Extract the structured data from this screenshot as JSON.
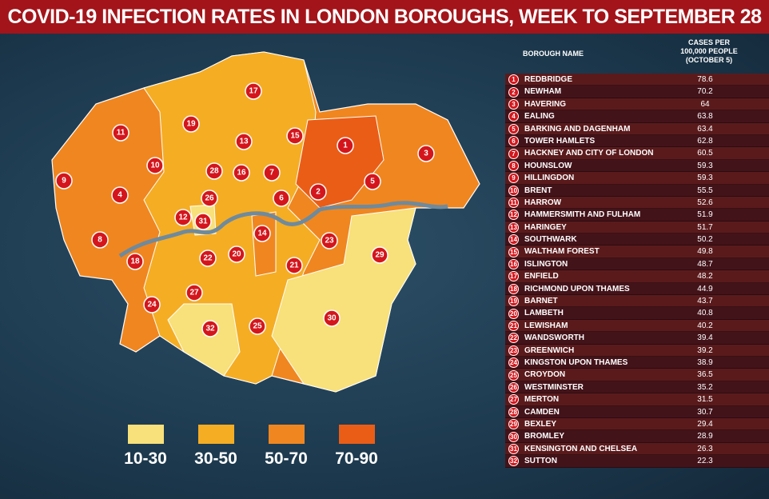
{
  "header": {
    "title": "COVID-19 INFECTION RATES IN LONDON BOROUGHS, WEEK TO SEPTEMBER 28"
  },
  "table": {
    "headers": [
      "BOROUGH NAME",
      "CASES PER 100,000 PEOPLE (OCTOBER 5)"
    ],
    "rows": [
      [
        1,
        "REDBRIDGE",
        78.6
      ],
      [
        2,
        "NEWHAM",
        70.2
      ],
      [
        3,
        "HAVERING",
        64
      ],
      [
        4,
        "EALING",
        63.8
      ],
      [
        5,
        "BARKING AND DAGENHAM",
        63.4
      ],
      [
        6,
        "TOWER HAMLETS",
        62.8
      ],
      [
        7,
        "HACKNEY AND CITY OF LONDON",
        60.5
      ],
      [
        8,
        "HOUNSLOW",
        59.3
      ],
      [
        9,
        "HILLINGDON",
        59.3
      ],
      [
        10,
        "BRENT",
        55.5
      ],
      [
        11,
        "HARROW",
        52.6
      ],
      [
        12,
        "HAMMERSMITH AND FULHAM",
        51.9
      ],
      [
        13,
        "HARINGEY",
        51.7
      ],
      [
        14,
        "SOUTHWARK",
        50.2
      ],
      [
        15,
        "WALTHAM FOREST",
        49.8
      ],
      [
        16,
        "ISLINGTON",
        48.7
      ],
      [
        17,
        "ENFIELD",
        48.2
      ],
      [
        18,
        "RICHMOND UPON THAMES",
        44.9
      ],
      [
        19,
        "BARNET",
        43.7
      ],
      [
        20,
        "LAMBETH",
        40.8
      ],
      [
        21,
        "LEWISHAM",
        40.2
      ],
      [
        22,
        "WANDSWORTH",
        39.4
      ],
      [
        23,
        "GREENWICH",
        39.2
      ],
      [
        24,
        "KINGSTON UPON THAMES",
        38.9
      ],
      [
        25,
        "CROYDON",
        36.5
      ],
      [
        26,
        "WESTMINSTER",
        35.2
      ],
      [
        27,
        "MERTON",
        31.5
      ],
      [
        28,
        "CAMDEN",
        30.7
      ],
      [
        29,
        "BEXLEY",
        29.4
      ],
      [
        30,
        "BROMLEY",
        28.9
      ],
      [
        31,
        "KENSINGTON AND CHELSEA",
        26.3
      ],
      [
        32,
        "SUTTON",
        22.3
      ]
    ]
  },
  "legend": [
    {
      "label": "10-30",
      "color": "#f8e07a"
    },
    {
      "label": "30-50",
      "color": "#f5ad24"
    },
    {
      "label": "50-70",
      "color": "#f0861f"
    },
    {
      "label": "70-90",
      "color": "#ea5d17"
    }
  ]
}
